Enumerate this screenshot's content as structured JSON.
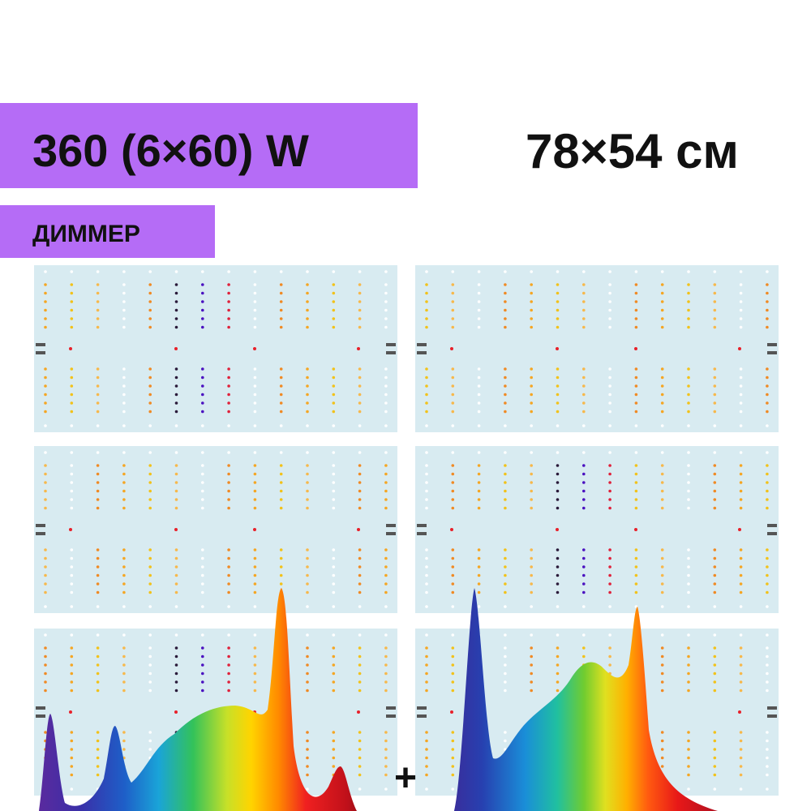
{
  "header": {
    "power": "360 (6×60) W",
    "size": "78×54 см",
    "badge": "ДИММЕР"
  },
  "plus": "+"
}
